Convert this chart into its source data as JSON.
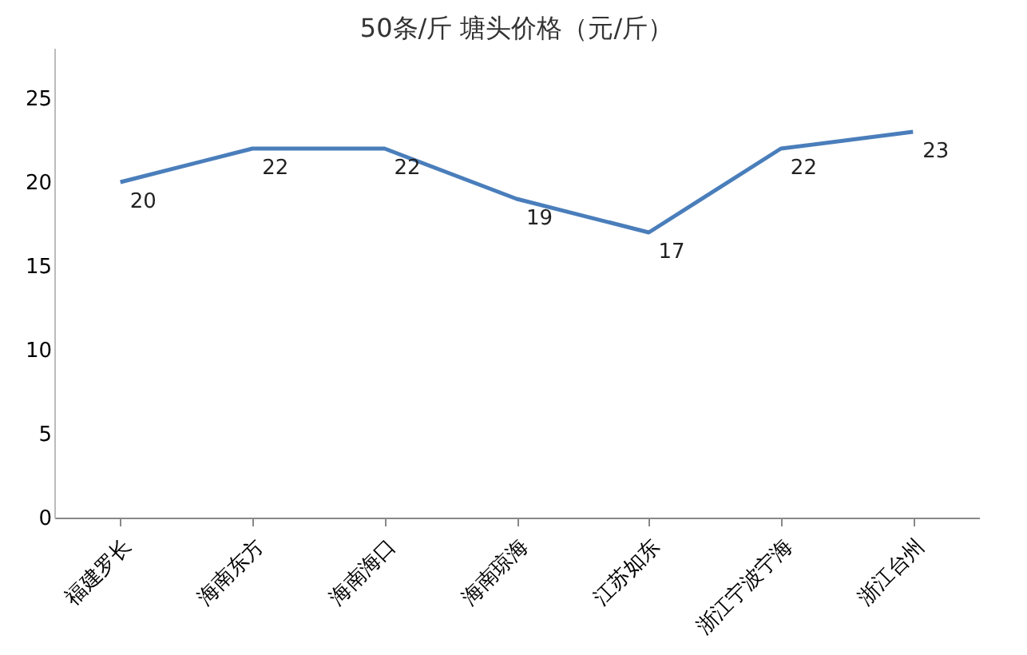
{
  "chart_data": {
    "type": "line",
    "title": "50条/斤  塘头价格（元/斤）",
    "categories": [
      "福建罗长",
      "海南东方",
      "海南海口",
      "海南琼海",
      "江苏如东",
      "浙江宁波宁海",
      "浙江台州"
    ],
    "series": [
      {
        "color": "#4a7ebb",
        "values": [
          20,
          22,
          22,
          19,
          17,
          22,
          23
        ]
      }
    ],
    "ylim": [
      0,
      28
    ],
    "yticks": [
      0,
      5,
      10,
      15,
      20,
      25
    ],
    "grid": false,
    "data_labels": true,
    "marker": "none",
    "line_style": "solid"
  }
}
